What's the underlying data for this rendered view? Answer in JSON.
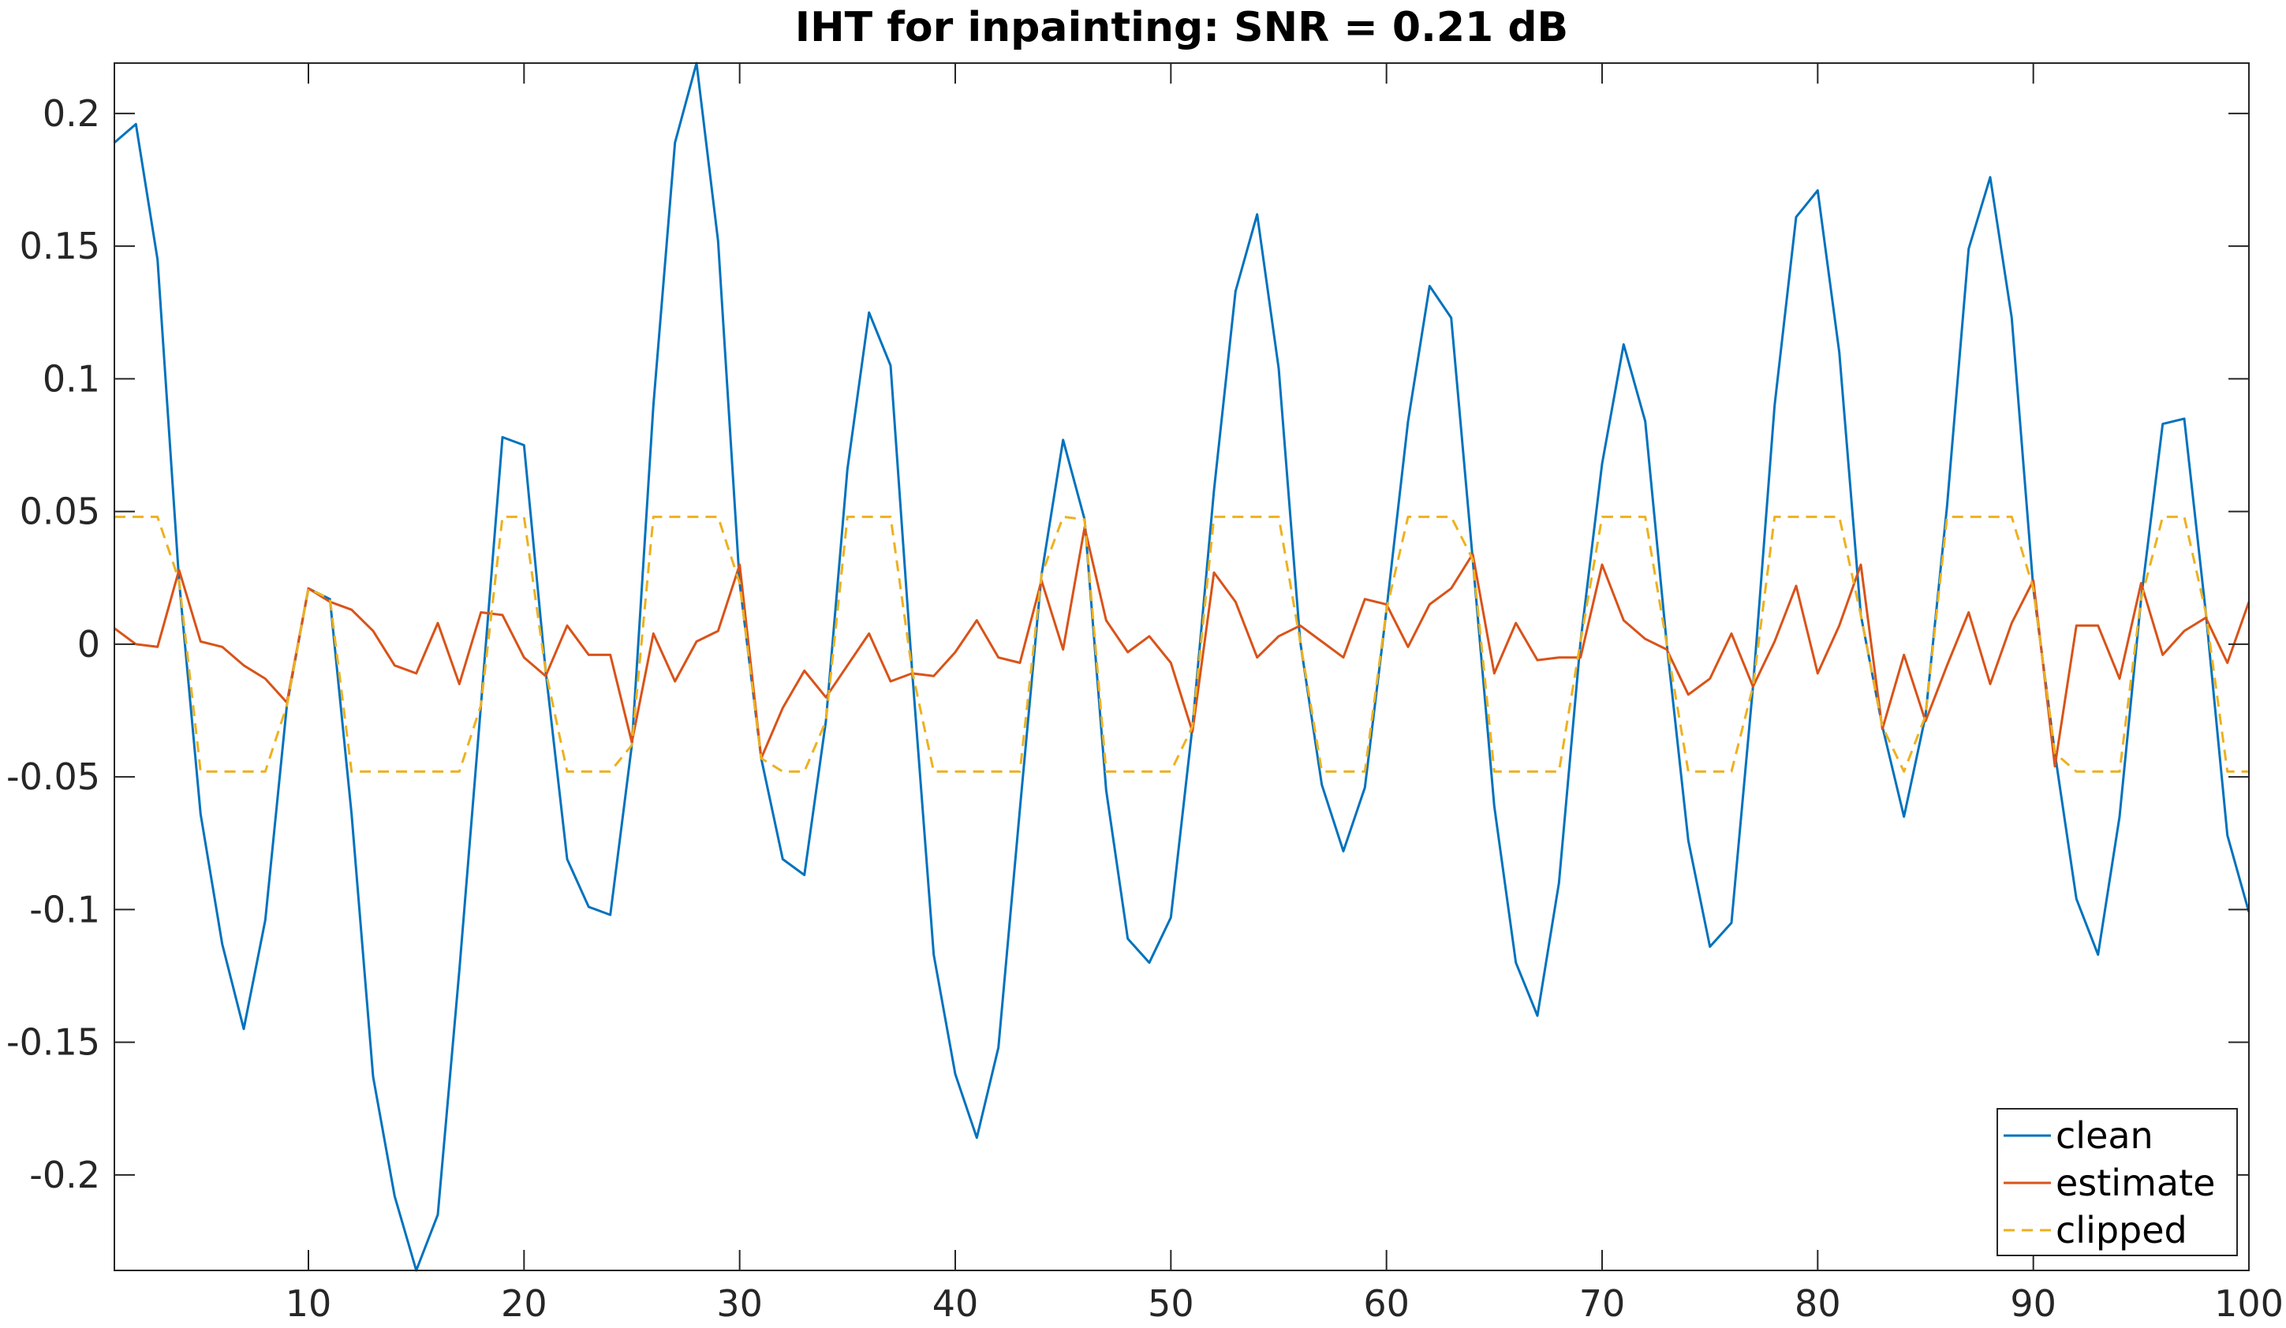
{
  "chart_data": {
    "type": "line",
    "title": "IHT for inpainting: SNR = 0.21 dB",
    "xlabel": "",
    "ylabel": "",
    "xlim": [
      1,
      100
    ],
    "ylim": [
      -0.236,
      0.219
    ],
    "grid": false,
    "legend_position": "bottom-right",
    "x_ticks": [
      10,
      20,
      30,
      40,
      50,
      60,
      70,
      80,
      90,
      100
    ],
    "y_ticks": [
      -0.2,
      -0.15,
      -0.1,
      -0.05,
      0,
      0.05,
      0.1,
      0.15,
      0.2
    ],
    "y_tick_labels": [
      "-0.2",
      "-0.15",
      "-0.1",
      "-0.05",
      "0",
      "0.05",
      "0.1",
      "0.15",
      "0.2"
    ],
    "x": [
      1,
      2,
      3,
      4,
      5,
      6,
      7,
      8,
      9,
      10,
      11,
      12,
      13,
      14,
      15,
      16,
      17,
      18,
      19,
      20,
      21,
      22,
      23,
      24,
      25,
      26,
      27,
      28,
      29,
      30,
      31,
      32,
      33,
      34,
      35,
      36,
      37,
      38,
      39,
      40,
      41,
      42,
      43,
      44,
      45,
      46,
      47,
      48,
      49,
      50,
      51,
      52,
      53,
      54,
      55,
      56,
      57,
      58,
      59,
      60,
      61,
      62,
      63,
      64,
      65,
      66,
      67,
      68,
      69,
      70,
      71,
      72,
      73,
      74,
      75,
      76,
      77,
      78,
      79,
      80,
      81,
      82,
      83,
      84,
      85,
      86,
      87,
      88,
      89,
      90,
      91,
      92,
      93,
      94,
      95,
      96,
      97,
      98,
      99,
      100
    ],
    "series": [
      {
        "name": "clean",
        "color": "#0072BD",
        "dash": "solid",
        "values": [
          0.189,
          0.196,
          0.145,
          0.024,
          -0.064,
          -0.113,
          -0.145,
          -0.104,
          -0.023,
          0.021,
          0.017,
          -0.064,
          -0.163,
          -0.208,
          -0.236,
          -0.215,
          -0.123,
          -0.023,
          0.078,
          0.075,
          -0.01,
          -0.081,
          -0.099,
          -0.102,
          -0.038,
          0.09,
          0.189,
          0.219,
          0.152,
          0.023,
          -0.043,
          -0.081,
          -0.087,
          -0.029,
          0.066,
          0.125,
          0.105,
          -0.01,
          -0.117,
          -0.162,
          -0.186,
          -0.152,
          -0.062,
          0.026,
          0.077,
          0.047,
          -0.055,
          -0.111,
          -0.12,
          -0.103,
          -0.031,
          0.058,
          0.133,
          0.162,
          0.104,
          0.001,
          -0.053,
          -0.078,
          -0.054,
          0.013,
          0.084,
          0.135,
          0.123,
          0.032,
          -0.061,
          -0.12,
          -0.14,
          -0.09,
          0.001,
          0.068,
          0.113,
          0.084,
          0.0,
          -0.074,
          -0.114,
          -0.105,
          -0.016,
          0.09,
          0.161,
          0.171,
          0.11,
          0.011,
          -0.031,
          -0.065,
          -0.027,
          0.052,
          0.149,
          0.176,
          0.123,
          0.021,
          -0.041,
          -0.096,
          -0.117,
          -0.065,
          0.017,
          0.083,
          0.085,
          0.012,
          -0.072,
          -0.101
        ]
      },
      {
        "name": "estimate",
        "color": "#D95319",
        "dash": "solid",
        "values": [
          0.006,
          0.0,
          -0.001,
          0.028,
          0.001,
          -0.001,
          -0.008,
          -0.013,
          -0.022,
          0.021,
          0.016,
          0.013,
          0.005,
          -0.008,
          -0.011,
          0.008,
          -0.015,
          0.012,
          0.011,
          -0.005,
          -0.012,
          0.007,
          -0.004,
          -0.004,
          -0.037,
          0.004,
          -0.014,
          0.001,
          0.005,
          0.03,
          -0.043,
          -0.024,
          -0.01,
          -0.02,
          -0.008,
          0.004,
          -0.014,
          -0.011,
          -0.012,
          -0.003,
          0.009,
          -0.005,
          -0.007,
          0.024,
          -0.002,
          0.044,
          0.009,
          -0.003,
          0.003,
          -0.007,
          -0.033,
          0.027,
          0.016,
          -0.005,
          0.003,
          0.007,
          0.001,
          -0.005,
          0.017,
          0.015,
          -0.001,
          0.015,
          0.021,
          0.034,
          -0.011,
          0.008,
          -0.006,
          -0.005,
          -0.005,
          0.03,
          0.009,
          0.002,
          -0.002,
          -0.019,
          -0.013,
          0.004,
          -0.016,
          0.001,
          0.022,
          -0.011,
          0.007,
          0.03,
          -0.032,
          -0.004,
          -0.029,
          -0.008,
          0.012,
          -0.015,
          0.008,
          0.024,
          -0.046,
          0.007,
          0.007,
          -0.013,
          0.023,
          -0.004,
          0.005,
          0.01,
          -0.007,
          0.016
        ]
      },
      {
        "name": "clipped",
        "color": "#EDB120",
        "dash": "dashed",
        "values": [
          0.048,
          0.048,
          0.048,
          0.024,
          -0.048,
          -0.048,
          -0.048,
          -0.048,
          -0.023,
          0.021,
          0.017,
          -0.048,
          -0.048,
          -0.048,
          -0.048,
          -0.048,
          -0.048,
          -0.023,
          0.048,
          0.048,
          -0.01,
          -0.048,
          -0.048,
          -0.048,
          -0.038,
          0.048,
          0.048,
          0.048,
          0.048,
          0.023,
          -0.043,
          -0.048,
          -0.048,
          -0.029,
          0.048,
          0.048,
          0.048,
          -0.01,
          -0.048,
          -0.048,
          -0.048,
          -0.048,
          -0.048,
          0.026,
          0.048,
          0.047,
          -0.048,
          -0.048,
          -0.048,
          -0.048,
          -0.031,
          0.048,
          0.048,
          0.048,
          0.048,
          0.001,
          -0.048,
          -0.048,
          -0.048,
          0.013,
          0.048,
          0.048,
          0.048,
          0.032,
          -0.048,
          -0.048,
          -0.048,
          -0.048,
          0.001,
          0.048,
          0.048,
          0.048,
          0.0,
          -0.048,
          -0.048,
          -0.048,
          -0.016,
          0.048,
          0.048,
          0.048,
          0.048,
          0.011,
          -0.031,
          -0.048,
          -0.027,
          0.048,
          0.048,
          0.048,
          0.048,
          0.021,
          -0.041,
          -0.048,
          -0.048,
          -0.048,
          0.017,
          0.048,
          0.048,
          0.012,
          -0.048,
          -0.048
        ]
      }
    ]
  }
}
